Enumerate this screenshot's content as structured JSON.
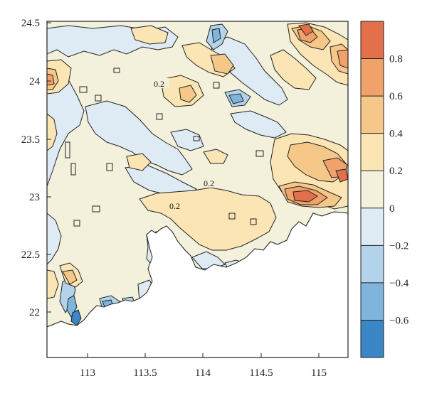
{
  "map": {
    "type": "filled-contour",
    "x_ticks": [
      "113",
      "113.5",
      "114",
      "114.5",
      "115"
    ],
    "x_tick_values": [
      113,
      113.5,
      114,
      114.5,
      115
    ],
    "y_ticks": [
      "24.5",
      "24",
      "23.5",
      "23",
      "22.5",
      "22"
    ],
    "y_tick_values": [
      24.5,
      24,
      23.5,
      23,
      22.5,
      22
    ],
    "xlim": [
      112.65,
      115.25
    ],
    "ylim": [
      21.6,
      24.55
    ],
    "contour_labels": [
      "0.2",
      "0.2",
      "0.2"
    ],
    "colors": {
      "land_ocean": "#ffffff",
      "lvl_neg_0_2": "#deebf5",
      "lvl_neg_0_4": "#b3d3ea",
      "lvl_neg_0_6": "#7fb5dd",
      "lvl_neg_0_8": "#3a86c7",
      "lvl_0_0": "#f3f1dc",
      "lvl_0_2": "#fbe5b4",
      "lvl_0_4": "#f5c88a",
      "lvl_0_6": "#f0a26a",
      "lvl_0_8": "#e3704a"
    }
  },
  "colorbar": {
    "ticks": [
      "0.8",
      "0.6",
      "0.4",
      "0.2",
      "0",
      "−0.2",
      "−0.4",
      "−0.6"
    ],
    "tick_values": [
      0.8,
      0.6,
      0.4,
      0.2,
      0,
      -0.2,
      -0.4,
      -0.6
    ],
    "levels": [
      -0.8,
      -0.6,
      -0.4,
      -0.2,
      0,
      0.2,
      0.4,
      0.6,
      0.8,
      1.0
    ],
    "colors": [
      "#3a86c7",
      "#7fb5dd",
      "#b3d3ea",
      "#deebf5",
      "#f3f1dc",
      "#fbe5b4",
      "#f5c88a",
      "#f0a26a",
      "#e3704a"
    ]
  }
}
